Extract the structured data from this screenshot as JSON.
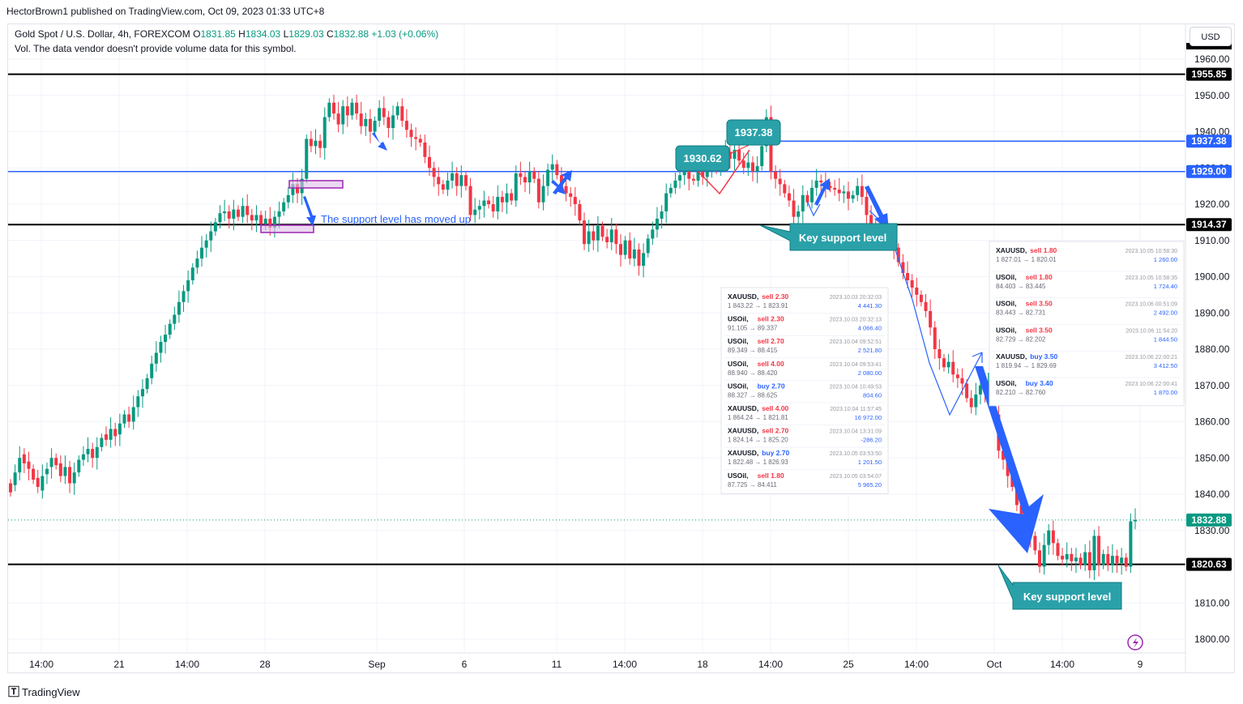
{
  "header": {
    "publisher_line": "HectorBrown1 published on TradingView.com, Oct 09, 2023 01:33 UTC+8",
    "symbol": "Gold Spot / U.S. Dollar, 4h, FOREXCOM",
    "ohlc": {
      "o_label": "O",
      "o": "1831.85",
      "h_label": "H",
      "h": "1834.03",
      "l_label": "L",
      "l": "1829.03",
      "c_label": "C",
      "c": "1832.88",
      "change": "+1.03 (+0.06%)"
    },
    "volume_note": "Vol. The data vendor doesn't provide volume data for this symbol.",
    "currency_button": "USD"
  },
  "footer": {
    "brand": "TradingView"
  },
  "colors": {
    "up": "#089981",
    "down": "#f23645",
    "blue_line": "#2962ff",
    "callout": "#2aa1a9",
    "black": "#000000"
  },
  "chart_data": {
    "type": "candlestick",
    "title": "Gold Spot / U.S. Dollar, 4h, FOREXCOM",
    "ylim": [
      1796,
      1962
    ],
    "y_ticks": [
      1800,
      1810,
      1820,
      1830,
      1840,
      1850,
      1860,
      1870,
      1880,
      1890,
      1900,
      1910,
      1920,
      1930,
      1940,
      1950,
      1960
    ],
    "x_ticks": [
      "14:00",
      "21",
      "14:00",
      "28",
      "Sep",
      "6",
      "11",
      "14:00",
      "18",
      "14:00",
      "25",
      "14:00",
      "Oct",
      "14:00",
      "9"
    ],
    "grid": true,
    "price_levels": [
      {
        "value": 1955.85,
        "label": "1955.85",
        "color": "#000000"
      },
      {
        "value": 1937.38,
        "label": "1937.38",
        "color": "#2962ff"
      },
      {
        "value": 1929.0,
        "label": "1929.00",
        "color": "#2962ff"
      },
      {
        "value": 1914.37,
        "label": "1914.37",
        "color": "#000000"
      },
      {
        "value": 1820.63,
        "label": "1820.63",
        "color": "#000000"
      },
      {
        "value": 1832.88,
        "label": "1832.88",
        "color": "#089981"
      }
    ],
    "path_points": [
      [
        1843.0,
        1840.5
      ],
      [
        1842.5,
        1846.0
      ],
      [
        1846.0,
        1850.0
      ],
      [
        1851.0,
        1848.5
      ],
      [
        1849.0,
        1847.0
      ],
      [
        1847.0,
        1844.0
      ],
      [
        1844.5,
        1842.0
      ],
      [
        1841.0,
        1845.0
      ],
      [
        1845.5,
        1847.0
      ],
      [
        1847.5,
        1850.0
      ],
      [
        1850.0,
        1848.0
      ],
      [
        1848.5,
        1845.0
      ],
      [
        1845.0,
        1847.5
      ],
      [
        1847.5,
        1843.0
      ],
      [
        1843.0,
        1846.0
      ],
      [
        1846.0,
        1849.5
      ],
      [
        1849.5,
        1851.0
      ],
      [
        1851.0,
        1852.5
      ],
      [
        1852.5,
        1850.0
      ],
      [
        1850.0,
        1853.0
      ],
      [
        1853.0,
        1855.5
      ],
      [
        1856.5,
        1855.0
      ],
      [
        1855.0,
        1858.0
      ],
      [
        1858.0,
        1856.0
      ],
      [
        1856.5,
        1859.5
      ],
      [
        1859.5,
        1862.0
      ],
      [
        1862.0,
        1860.0
      ],
      [
        1860.0,
        1864.0
      ],
      [
        1864.0,
        1867.0
      ],
      [
        1867.0,
        1869.0
      ],
      [
        1869.0,
        1872.0
      ],
      [
        1872.0,
        1876.0
      ],
      [
        1876.0,
        1879.0
      ],
      [
        1879.0,
        1882.0
      ],
      [
        1882.0,
        1884.0
      ],
      [
        1884.0,
        1887.0
      ],
      [
        1887.0,
        1889.5
      ],
      [
        1889.5,
        1893.0
      ],
      [
        1893.0,
        1896.0
      ],
      [
        1896.0,
        1899.0
      ],
      [
        1899.0,
        1902.5
      ],
      [
        1902.5,
        1905.0
      ],
      [
        1905.0,
        1908.0
      ],
      [
        1908.0,
        1910.0
      ],
      [
        1910.0,
        1912.5
      ],
      [
        1912.5,
        1915.0
      ],
      [
        1915.0,
        1917.5
      ],
      [
        1917.5,
        1918.0
      ],
      [
        1918.0,
        1916.0
      ],
      [
        1916.0,
        1918.5
      ],
      [
        1918.5,
        1916.5
      ],
      [
        1916.5,
        1919.5
      ],
      [
        1919.5,
        1917.0
      ],
      [
        1917.0,
        1915.5
      ],
      [
        1915.5,
        1917.0
      ],
      [
        1917.0,
        1914.5
      ],
      [
        1914.5,
        1916.0
      ],
      [
        1916.0,
        1913.5
      ],
      [
        1913.5,
        1916.5
      ],
      [
        1916.5,
        1918.0
      ],
      [
        1918.0,
        1920.5
      ],
      [
        1920.5,
        1922.5
      ],
      [
        1922.5,
        1925.5
      ],
      [
        1925.5,
        1923.0
      ],
      [
        1923.0,
        1927.0
      ],
      [
        1927.0,
        1938.0
      ],
      [
        1938.0,
        1936.0
      ],
      [
        1936.0,
        1937.5
      ],
      [
        1937.5,
        1935.5
      ],
      [
        1935.5,
        1944.0
      ],
      [
        1944.0,
        1948.0
      ],
      [
        1948.0,
        1945.0
      ],
      [
        1945.0,
        1942.0
      ],
      [
        1942.0,
        1947.0
      ],
      [
        1947.0,
        1944.5
      ],
      [
        1944.5,
        1948.0
      ],
      [
        1948.0,
        1945.0
      ],
      [
        1945.0,
        1941.5
      ],
      [
        1941.5,
        1943.5
      ],
      [
        1943.5,
        1940.0
      ],
      [
        1940.0,
        1943.0
      ],
      [
        1943.0,
        1946.5
      ],
      [
        1946.5,
        1944.0
      ],
      [
        1944.0,
        1941.0
      ],
      [
        1941.0,
        1944.5
      ],
      [
        1944.5,
        1947.0
      ],
      [
        1947.0,
        1943.0
      ],
      [
        1943.0,
        1940.5
      ],
      [
        1940.5,
        1938.5
      ],
      [
        1938.5,
        1938.0
      ],
      [
        1938.0,
        1937.0
      ],
      [
        1937.0,
        1933.0
      ],
      [
        1933.0,
        1930.0
      ],
      [
        1930.0,
        1927.5
      ],
      [
        1927.5,
        1925.5
      ],
      [
        1925.5,
        1924.0
      ],
      [
        1924.0,
        1926.5
      ],
      [
        1926.5,
        1928.5
      ],
      [
        1928.5,
        1925.0
      ],
      [
        1925.0,
        1928.0
      ],
      [
        1928.0,
        1925.0
      ],
      [
        1925.0,
        1917.0
      ],
      [
        1917.0,
        1918.5
      ],
      [
        1918.5,
        1919.5
      ],
      [
        1919.5,
        1921.0
      ],
      [
        1921.0,
        1920.0
      ],
      [
        1920.0,
        1918.0
      ],
      [
        1918.0,
        1922.0
      ],
      [
        1922.0,
        1920.5
      ],
      [
        1920.5,
        1923.0
      ],
      [
        1923.0,
        1921.0
      ],
      [
        1921.0,
        1928.5
      ],
      [
        1928.5,
        1927.5
      ],
      [
        1927.5,
        1926.0
      ],
      [
        1926.0,
        1929.0
      ],
      [
        1929.0,
        1927.0
      ],
      [
        1927.0,
        1920.5
      ],
      [
        1920.5,
        1925.0
      ],
      [
        1925.0,
        1929.5
      ],
      [
        1929.5,
        1931.0
      ],
      [
        1931.0,
        1928.0
      ],
      [
        1928.0,
        1925.0
      ],
      [
        1925.0,
        1923.0
      ],
      [
        1923.0,
        1922.0
      ],
      [
        1922.0,
        1920.0
      ],
      [
        1920.0,
        1915.5
      ],
      [
        1915.5,
        1909.0
      ],
      [
        1909.0,
        1912.5
      ],
      [
        1912.5,
        1910.0
      ],
      [
        1910.0,
        1914.0
      ],
      [
        1914.0,
        1911.0
      ],
      [
        1911.0,
        1909.5
      ],
      [
        1909.5,
        1913.0
      ],
      [
        1913.0,
        1909.0
      ],
      [
        1909.0,
        1906.0
      ],
      [
        1906.0,
        1910.0
      ],
      [
        1910.0,
        1905.0
      ],
      [
        1905.0,
        1907.5
      ],
      [
        1907.5,
        1903.0
      ],
      [
        1903.0,
        1906.5
      ],
      [
        1906.5,
        1910.5
      ],
      [
        1910.5,
        1913.0
      ],
      [
        1913.0,
        1916.0
      ],
      [
        1916.0,
        1918.0
      ],
      [
        1918.0,
        1923.0
      ],
      [
        1923.0,
        1924.5
      ],
      [
        1924.5,
        1926.5
      ],
      [
        1926.5,
        1928.0
      ],
      [
        1928.0,
        1929.5
      ],
      [
        1929.5,
        1927.0
      ],
      [
        1927.0,
        1926.5
      ],
      [
        1926.5,
        1929.0
      ],
      [
        1929.0,
        1927.5
      ],
      [
        1927.5,
        1930.5
      ],
      [
        1930.5,
        1932.0
      ],
      [
        1932.0,
        1929.5
      ],
      [
        1929.5,
        1933.0
      ],
      [
        1933.0,
        1934.5
      ],
      [
        1934.5,
        1932.5
      ],
      [
        1932.5,
        1935.0
      ],
      [
        1935.0,
        1932.0
      ],
      [
        1932.0,
        1930.0
      ],
      [
        1930.0,
        1931.5
      ],
      [
        1931.5,
        1929.0
      ],
      [
        1929.0,
        1930.5
      ],
      [
        1930.5,
        1936.0
      ],
      [
        1936.0,
        1944.0
      ],
      [
        1944.0,
        1929.0
      ],
      [
        1929.0,
        1927.0
      ],
      [
        1927.0,
        1925.5
      ],
      [
        1925.5,
        1923.0
      ],
      [
        1923.0,
        1921.0
      ],
      [
        1921.0,
        1916.5
      ],
      [
        1916.5,
        1918.0
      ],
      [
        1918.0,
        1922.5
      ],
      [
        1922.5,
        1920.5
      ],
      [
        1920.5,
        1924.5
      ],
      [
        1924.5,
        1926.5
      ],
      [
        1926.5,
        1926.0
      ],
      [
        1926.0,
        1925.0
      ],
      [
        1925.0,
        1924.5
      ],
      [
        1924.5,
        1924.0
      ],
      [
        1924.0,
        1923.0
      ],
      [
        1923.0,
        1923.5
      ],
      [
        1923.5,
        1921.5
      ],
      [
        1921.5,
        1922.5
      ],
      [
        1922.5,
        1925.0
      ],
      [
        1925.0,
        1922.0
      ],
      [
        1922.0,
        1917.0
      ],
      [
        1917.0,
        1914.5
      ],
      [
        1914.5,
        1913.0
      ],
      [
        1913.0,
        1912.5
      ],
      [
        1912.5,
        1912.0
      ],
      [
        1912.0,
        1910.5
      ],
      [
        1910.5,
        1908.0
      ],
      [
        1908.0,
        1904.0
      ],
      [
        1904.0,
        1901.0
      ],
      [
        1901.0,
        1899.0
      ],
      [
        1899.0,
        1897.0
      ],
      [
        1897.0,
        1895.0
      ],
      [
        1895.0,
        1893.0
      ],
      [
        1893.0,
        1890.5
      ],
      [
        1890.5,
        1886.0
      ],
      [
        1886.0,
        1880.0
      ],
      [
        1880.0,
        1877.5
      ],
      [
        1877.5,
        1875.0
      ],
      [
        1875.0,
        1876.5
      ],
      [
        1876.5,
        1873.0
      ],
      [
        1873.0,
        1872.0
      ],
      [
        1872.0,
        1870.5
      ],
      [
        1870.5,
        1866.5
      ],
      [
        1866.5,
        1864.0
      ],
      [
        1864.0,
        1867.5
      ],
      [
        1867.5,
        1870.0
      ],
      [
        1870.0,
        1868.5
      ],
      [
        1868.5,
        1873.5
      ],
      [
        1873.5,
        1862.0
      ],
      [
        1862.0,
        1852.0
      ],
      [
        1852.0,
        1849.5
      ],
      [
        1849.5,
        1845.0
      ],
      [
        1845.0,
        1842.0
      ],
      [
        1842.0,
        1837.0
      ],
      [
        1837.0,
        1834.0
      ],
      [
        1834.0,
        1831.0
      ],
      [
        1831.0,
        1828.5
      ],
      [
        1828.5,
        1824.5
      ],
      [
        1824.5,
        1820.0
      ],
      [
        1820.0,
        1826.0
      ],
      [
        1826.0,
        1830.0
      ],
      [
        1830.0,
        1826.5
      ],
      [
        1826.5,
        1823.0
      ],
      [
        1823.0,
        1822.0
      ],
      [
        1822.0,
        1823.5
      ],
      [
        1823.5,
        1821.5
      ],
      [
        1821.5,
        1822.5
      ],
      [
        1822.5,
        1820.5
      ],
      [
        1820.5,
        1824.0
      ],
      [
        1824.0,
        1819.0
      ],
      [
        1819.0,
        1828.5
      ],
      [
        1828.5,
        1820.5
      ],
      [
        1820.5,
        1823.5
      ],
      [
        1823.5,
        1820.5
      ],
      [
        1820.5,
        1823.0
      ],
      [
        1823.0,
        1821.0
      ],
      [
        1821.0,
        1822.5
      ],
      [
        1822.5,
        1820.0
      ],
      [
        1820.0,
        1832.5
      ],
      [
        1832.5,
        1832.9
      ]
    ],
    "callouts": [
      {
        "text": "1930.62"
      },
      {
        "text": "1937.38"
      },
      {
        "text": "Key support level",
        "id": "mid"
      },
      {
        "text": "Key support level",
        "id": "low"
      }
    ],
    "annotation": "The support level has moved up",
    "trade_panel_1": [
      {
        "title": "XAUUSD,",
        "side": "sell 2.30",
        "side_color": "#f23645",
        "range": "1 843.22 → 1 823.91",
        "date": "2023.10.03 20:32:03",
        "pnl": "4 441.30",
        "pnl_color": "#2962ff"
      },
      {
        "title": "USOil,",
        "side": "sell 2.30",
        "side_color": "#f23645",
        "range": "91.105 → 89.337",
        "date": "2023.10.03 20:32:13",
        "pnl": "4 066.40",
        "pnl_color": "#2962ff"
      },
      {
        "title": "USOil,",
        "side": "sell 2.70",
        "side_color": "#f23645",
        "range": "89.349 → 88.415",
        "date": "2023.10.04 09:52:51",
        "pnl": "2 521.80",
        "pnl_color": "#2962ff"
      },
      {
        "title": "USOil,",
        "side": "sell 4.00",
        "side_color": "#f23645",
        "range": "88.940 → 88.420",
        "date": "2023.10.04 09:53:41",
        "pnl": "2 080.00",
        "pnl_color": "#2962ff"
      },
      {
        "title": "USOil,",
        "side": "buy 2.70",
        "side_color": "#2962ff",
        "range": "88.327 → 88.625",
        "date": "2023.10.04 10:49:53",
        "pnl": "804.60",
        "pnl_color": "#2962ff"
      },
      {
        "title": "XAUUSD,",
        "side": "sell 4.00",
        "side_color": "#f23645",
        "range": "1 864.24 → 1 821.81",
        "date": "2023.10.04 11:57:45",
        "pnl": "16 972.00",
        "pnl_color": "#2962ff"
      },
      {
        "title": "XAUUSD,",
        "side": "sell 2.70",
        "side_color": "#f23645",
        "range": "1 824.14 → 1 825.20",
        "date": "2023.10.04 13:31:09",
        "pnl": "-286.20",
        "pnl_color": "#f23645"
      },
      {
        "title": "XAUUSD,",
        "side": "buy 2.70",
        "side_color": "#2962ff",
        "range": "1 822.48 → 1 826.93",
        "date": "2023.10.05 03:53:50",
        "pnl": "1 201.50",
        "pnl_color": "#2962ff"
      },
      {
        "title": "USOil,",
        "side": "sell 1.80",
        "side_color": "#f23645",
        "range": "87.725 → 84.411",
        "date": "2023.10.05 03:54:07",
        "pnl": "5 965.20",
        "pnl_color": "#2962ff"
      }
    ],
    "trade_panel_2": [
      {
        "title": "XAUUSD,",
        "side": "sell 1.80",
        "side_color": "#f23645",
        "range": "1 827.01 → 1 820.01",
        "date": "2023.10.05 10:58:30",
        "pnl": "1 260.00",
        "pnl_color": "#2962ff"
      },
      {
        "title": "USOil,",
        "side": "sell 1.80",
        "side_color": "#f23645",
        "range": "84.403 → 83.445",
        "date": "2023.10.05 10:58:35",
        "pnl": "1 724.40",
        "pnl_color": "#2962ff"
      },
      {
        "title": "USOil,",
        "side": "sell 3.50",
        "side_color": "#f23645",
        "range": "83.443 → 82.731",
        "date": "2023.10.06 00:51:09",
        "pnl": "2 492.00",
        "pnl_color": "#2962ff"
      },
      {
        "title": "USOil,",
        "side": "sell 3.50",
        "side_color": "#f23645",
        "range": "82.729 → 82.202",
        "date": "2023.10.06 11:54:20",
        "pnl": "1 844.50",
        "pnl_color": "#2962ff"
      },
      {
        "title": "XAUUSD,",
        "side": "buy 3.50",
        "side_color": "#2962ff",
        "range": "1 819.94 → 1 829.69",
        "date": "2023.10.06 22:00:21",
        "pnl": "3 412.50",
        "pnl_color": "#2962ff"
      },
      {
        "title": "USOil,",
        "side": "buy 3.40",
        "side_color": "#2962ff",
        "range": "82.210 → 82.760",
        "date": "2023.10.06 22:00:41",
        "pnl": "1 870.00",
        "pnl_color": "#2962ff"
      }
    ]
  }
}
